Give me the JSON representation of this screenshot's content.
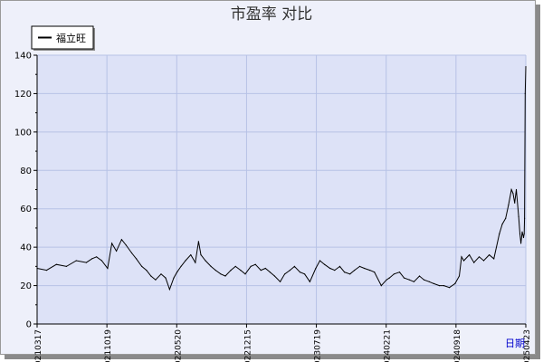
{
  "chart_data": {
    "type": "line",
    "title": "市盈率  对比",
    "xlabel": "日期",
    "ylabel": "",
    "ylim": [
      0,
      140
    ],
    "yticks": [
      0,
      20,
      40,
      60,
      80,
      100,
      120,
      140
    ],
    "x_tick_labels": [
      "20210317",
      "20211019",
      "20220520",
      "20221215",
      "20230719",
      "20240221",
      "20240918",
      "20250423"
    ],
    "legend": {
      "placement": "top-left",
      "entries": [
        "福立旺"
      ]
    },
    "grid": true,
    "colors": {
      "plot_bg": "#dde2f7",
      "frame_bg": "#eef0fa",
      "line": "#000000",
      "grid": "#b7c2e6",
      "axis_label": "#0000cc"
    },
    "series": [
      {
        "name": "福立旺",
        "x": [
          "2021-03-17",
          "2021-04-15",
          "2021-05-15",
          "2021-06-15",
          "2021-07-15",
          "2021-08-15",
          "2021-09-01",
          "2021-09-15",
          "2021-10-01",
          "2021-10-19",
          "2021-11-01",
          "2021-11-15",
          "2021-12-01",
          "2021-12-15",
          "2022-01-01",
          "2022-01-15",
          "2022-02-01",
          "2022-02-15",
          "2022-03-01",
          "2022-03-15",
          "2022-04-01",
          "2022-04-15",
          "2022-04-27",
          "2022-05-10",
          "2022-05-20",
          "2022-06-01",
          "2022-06-15",
          "2022-07-01",
          "2022-07-15",
          "2022-07-25",
          "2022-08-01",
          "2022-08-15",
          "2022-09-01",
          "2022-09-15",
          "2022-10-01",
          "2022-10-15",
          "2022-11-01",
          "2022-11-15",
          "2022-12-01",
          "2022-12-15",
          "2023-01-01",
          "2023-01-15",
          "2023-02-01",
          "2023-02-15",
          "2023-03-01",
          "2023-03-15",
          "2023-04-01",
          "2023-04-15",
          "2023-05-01",
          "2023-05-15",
          "2023-06-01",
          "2023-06-15",
          "2023-07-01",
          "2023-07-19",
          "2023-08-01",
          "2023-08-15",
          "2023-09-01",
          "2023-09-15",
          "2023-10-01",
          "2023-10-15",
          "2023-11-01",
          "2023-11-15",
          "2023-12-01",
          "2023-12-15",
          "2024-01-01",
          "2024-01-15",
          "2024-02-05",
          "2024-02-21",
          "2024-03-01",
          "2024-03-15",
          "2024-04-01",
          "2024-04-15",
          "2024-05-01",
          "2024-05-15",
          "2024-06-01",
          "2024-06-15",
          "2024-07-01",
          "2024-07-15",
          "2024-08-01",
          "2024-08-15",
          "2024-09-01",
          "2024-09-18",
          "2024-10-01",
          "2024-10-08",
          "2024-10-15",
          "2024-11-01",
          "2024-11-15",
          "2024-12-01",
          "2024-12-15",
          "2025-01-01",
          "2025-01-15",
          "2025-02-01",
          "2025-02-10",
          "2025-02-20",
          "2025-03-01",
          "2025-03-10",
          "2025-03-15",
          "2025-03-20",
          "2025-03-25",
          "2025-04-01",
          "2025-04-05",
          "2025-04-08",
          "2025-04-12",
          "2025-04-16",
          "2025-04-18",
          "2025-04-19",
          "2025-04-21",
          "2025-04-23"
        ],
        "y": [
          29,
          28,
          31,
          30,
          33,
          32,
          34,
          35,
          33,
          29,
          42,
          38,
          44,
          41,
          37,
          34,
          30,
          28,
          25,
          23,
          26,
          24,
          18,
          24,
          27,
          30,
          33,
          36,
          32,
          43,
          36,
          33,
          30,
          28,
          26,
          25,
          28,
          30,
          28,
          26,
          30,
          31,
          28,
          29,
          27,
          25,
          22,
          26,
          28,
          30,
          27,
          26,
          22,
          29,
          33,
          31,
          29,
          28,
          30,
          27,
          26,
          28,
          30,
          29,
          28,
          27,
          20,
          23,
          24,
          26,
          27,
          24,
          23,
          22,
          25,
          23,
          22,
          21,
          20,
          20,
          19,
          21,
          25,
          35,
          33,
          36,
          32,
          35,
          33,
          36,
          34,
          47,
          52,
          55,
          62,
          70,
          68,
          63,
          70,
          56,
          47,
          42,
          48,
          45,
          47,
          55,
          120,
          134
        ]
      }
    ]
  }
}
